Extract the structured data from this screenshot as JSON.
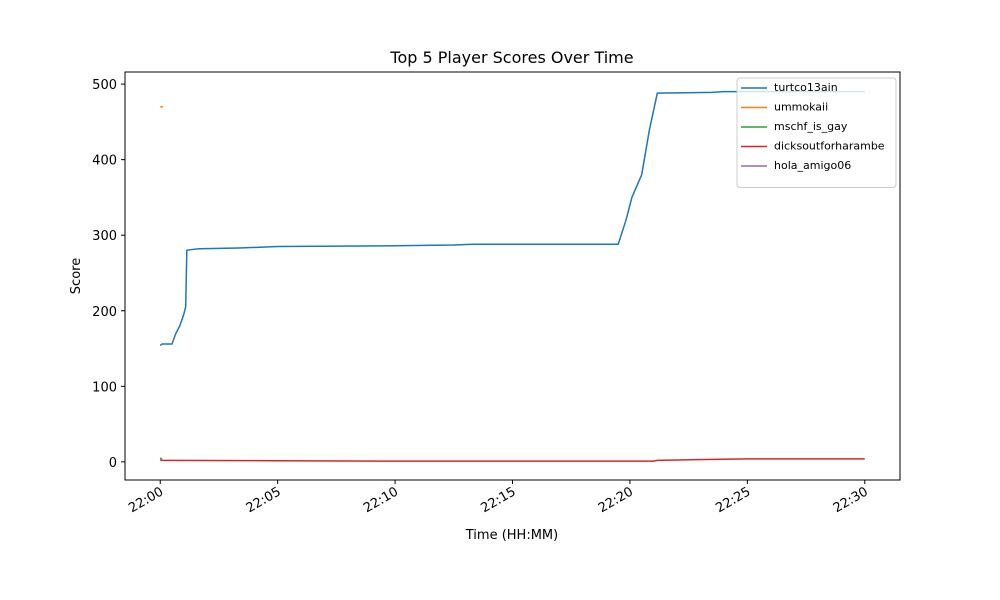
{
  "chart_data": {
    "type": "line",
    "title": "Top 5 Player Scores Over Time",
    "x_label": "Time (HH:MM)",
    "y_label": "Score",
    "xlim": [
      "21:58:30",
      "22:31:30"
    ],
    "xticks": [
      "22:00",
      "22:05",
      "22:10",
      "22:15",
      "22:20",
      "22:25",
      "22:30"
    ],
    "ylim": [
      -24,
      516
    ],
    "yticks": [
      0,
      100,
      200,
      300,
      400,
      500
    ],
    "legend": "upper right",
    "grid": false,
    "series": [
      {
        "name": "turtco13ain",
        "color": "#1f77b4",
        "x": [
          "22:00:00",
          "22:00:05",
          "22:00:30",
          "22:00:40",
          "22:00:50",
          "22:01:00",
          "22:01:05",
          "22:01:08",
          "22:01:20",
          "22:01:40",
          "22:03:20",
          "22:05:00",
          "22:10:00",
          "22:12:30",
          "22:13:20",
          "22:19:30",
          "22:19:50",
          "22:20:05",
          "22:20:30",
          "22:20:50",
          "22:21:10",
          "22:23:30",
          "22:24:00",
          "22:30:00"
        ],
        "values": [
          154,
          156,
          156,
          170,
          180,
          195,
          205,
          280,
          281,
          282,
          283,
          285,
          286,
          287,
          288,
          288,
          320,
          350,
          380,
          440,
          488,
          489,
          490,
          490
        ]
      },
      {
        "name": "ummokaii",
        "color": "#ff7f0e",
        "x": [
          "22:00:00",
          "22:00:07"
        ],
        "values": [
          470,
          470
        ]
      },
      {
        "name": "mschf_is_gay",
        "color": "#2ca02c",
        "x": [
          "22:00:00",
          "22:00:05"
        ],
        "values": [
          5,
          4
        ]
      },
      {
        "name": "dicksoutforharambe",
        "color": "#d62728",
        "x": [
          "22:00:00",
          "22:05:00",
          "22:10:00",
          "22:21:00",
          "22:21:10",
          "22:22:50",
          "22:25:00",
          "22:30:00"
        ],
        "values": [
          2,
          1.5,
          1,
          1,
          2,
          3,
          4,
          4
        ]
      },
      {
        "name": "hola_amigo06",
        "color": "#9467bd",
        "x": [
          "22:00:00",
          "22:00:05"
        ],
        "values": [
          3,
          3
        ]
      }
    ]
  }
}
